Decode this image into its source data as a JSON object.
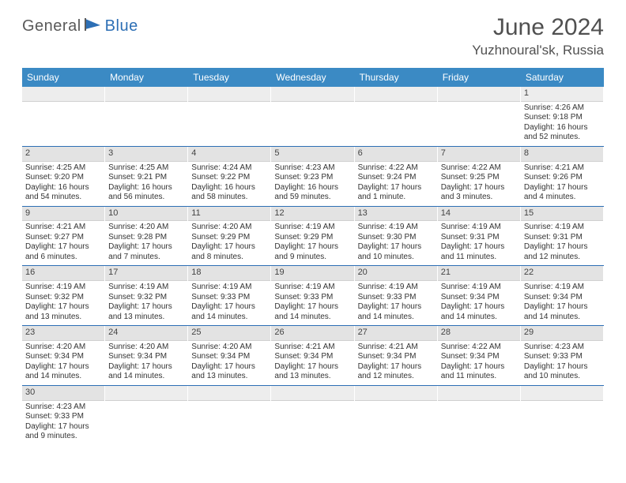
{
  "brand": {
    "part1": "General",
    "part2": "Blue"
  },
  "title": "June 2024",
  "location": "Yuzhnoural'sk, Russia",
  "colors": {
    "header_bg": "#3b8ac4",
    "accent": "#2d6fb5",
    "daybar": "#e3e3e3",
    "text": "#333333"
  },
  "weekdays": [
    "Sunday",
    "Monday",
    "Tuesday",
    "Wednesday",
    "Thursday",
    "Friday",
    "Saturday"
  ],
  "weeks": [
    [
      null,
      null,
      null,
      null,
      null,
      null,
      {
        "n": "1",
        "sunrise": "Sunrise: 4:26 AM",
        "sunset": "Sunset: 9:18 PM",
        "daylight": "Daylight: 16 hours and 52 minutes."
      }
    ],
    [
      {
        "n": "2",
        "sunrise": "Sunrise: 4:25 AM",
        "sunset": "Sunset: 9:20 PM",
        "daylight": "Daylight: 16 hours and 54 minutes."
      },
      {
        "n": "3",
        "sunrise": "Sunrise: 4:25 AM",
        "sunset": "Sunset: 9:21 PM",
        "daylight": "Daylight: 16 hours and 56 minutes."
      },
      {
        "n": "4",
        "sunrise": "Sunrise: 4:24 AM",
        "sunset": "Sunset: 9:22 PM",
        "daylight": "Daylight: 16 hours and 58 minutes."
      },
      {
        "n": "5",
        "sunrise": "Sunrise: 4:23 AM",
        "sunset": "Sunset: 9:23 PM",
        "daylight": "Daylight: 16 hours and 59 minutes."
      },
      {
        "n": "6",
        "sunrise": "Sunrise: 4:22 AM",
        "sunset": "Sunset: 9:24 PM",
        "daylight": "Daylight: 17 hours and 1 minute."
      },
      {
        "n": "7",
        "sunrise": "Sunrise: 4:22 AM",
        "sunset": "Sunset: 9:25 PM",
        "daylight": "Daylight: 17 hours and 3 minutes."
      },
      {
        "n": "8",
        "sunrise": "Sunrise: 4:21 AM",
        "sunset": "Sunset: 9:26 PM",
        "daylight": "Daylight: 17 hours and 4 minutes."
      }
    ],
    [
      {
        "n": "9",
        "sunrise": "Sunrise: 4:21 AM",
        "sunset": "Sunset: 9:27 PM",
        "daylight": "Daylight: 17 hours and 6 minutes."
      },
      {
        "n": "10",
        "sunrise": "Sunrise: 4:20 AM",
        "sunset": "Sunset: 9:28 PM",
        "daylight": "Daylight: 17 hours and 7 minutes."
      },
      {
        "n": "11",
        "sunrise": "Sunrise: 4:20 AM",
        "sunset": "Sunset: 9:29 PM",
        "daylight": "Daylight: 17 hours and 8 minutes."
      },
      {
        "n": "12",
        "sunrise": "Sunrise: 4:19 AM",
        "sunset": "Sunset: 9:29 PM",
        "daylight": "Daylight: 17 hours and 9 minutes."
      },
      {
        "n": "13",
        "sunrise": "Sunrise: 4:19 AM",
        "sunset": "Sunset: 9:30 PM",
        "daylight": "Daylight: 17 hours and 10 minutes."
      },
      {
        "n": "14",
        "sunrise": "Sunrise: 4:19 AM",
        "sunset": "Sunset: 9:31 PM",
        "daylight": "Daylight: 17 hours and 11 minutes."
      },
      {
        "n": "15",
        "sunrise": "Sunrise: 4:19 AM",
        "sunset": "Sunset: 9:31 PM",
        "daylight": "Daylight: 17 hours and 12 minutes."
      }
    ],
    [
      {
        "n": "16",
        "sunrise": "Sunrise: 4:19 AM",
        "sunset": "Sunset: 9:32 PM",
        "daylight": "Daylight: 17 hours and 13 minutes."
      },
      {
        "n": "17",
        "sunrise": "Sunrise: 4:19 AM",
        "sunset": "Sunset: 9:32 PM",
        "daylight": "Daylight: 17 hours and 13 minutes."
      },
      {
        "n": "18",
        "sunrise": "Sunrise: 4:19 AM",
        "sunset": "Sunset: 9:33 PM",
        "daylight": "Daylight: 17 hours and 14 minutes."
      },
      {
        "n": "19",
        "sunrise": "Sunrise: 4:19 AM",
        "sunset": "Sunset: 9:33 PM",
        "daylight": "Daylight: 17 hours and 14 minutes."
      },
      {
        "n": "20",
        "sunrise": "Sunrise: 4:19 AM",
        "sunset": "Sunset: 9:33 PM",
        "daylight": "Daylight: 17 hours and 14 minutes."
      },
      {
        "n": "21",
        "sunrise": "Sunrise: 4:19 AM",
        "sunset": "Sunset: 9:34 PM",
        "daylight": "Daylight: 17 hours and 14 minutes."
      },
      {
        "n": "22",
        "sunrise": "Sunrise: 4:19 AM",
        "sunset": "Sunset: 9:34 PM",
        "daylight": "Daylight: 17 hours and 14 minutes."
      }
    ],
    [
      {
        "n": "23",
        "sunrise": "Sunrise: 4:20 AM",
        "sunset": "Sunset: 9:34 PM",
        "daylight": "Daylight: 17 hours and 14 minutes."
      },
      {
        "n": "24",
        "sunrise": "Sunrise: 4:20 AM",
        "sunset": "Sunset: 9:34 PM",
        "daylight": "Daylight: 17 hours and 14 minutes."
      },
      {
        "n": "25",
        "sunrise": "Sunrise: 4:20 AM",
        "sunset": "Sunset: 9:34 PM",
        "daylight": "Daylight: 17 hours and 13 minutes."
      },
      {
        "n": "26",
        "sunrise": "Sunrise: 4:21 AM",
        "sunset": "Sunset: 9:34 PM",
        "daylight": "Daylight: 17 hours and 13 minutes."
      },
      {
        "n": "27",
        "sunrise": "Sunrise: 4:21 AM",
        "sunset": "Sunset: 9:34 PM",
        "daylight": "Daylight: 17 hours and 12 minutes."
      },
      {
        "n": "28",
        "sunrise": "Sunrise: 4:22 AM",
        "sunset": "Sunset: 9:34 PM",
        "daylight": "Daylight: 17 hours and 11 minutes."
      },
      {
        "n": "29",
        "sunrise": "Sunrise: 4:23 AM",
        "sunset": "Sunset: 9:33 PM",
        "daylight": "Daylight: 17 hours and 10 minutes."
      }
    ],
    [
      {
        "n": "30",
        "sunrise": "Sunrise: 4:23 AM",
        "sunset": "Sunset: 9:33 PM",
        "daylight": "Daylight: 17 hours and 9 minutes."
      },
      null,
      null,
      null,
      null,
      null,
      null
    ]
  ]
}
